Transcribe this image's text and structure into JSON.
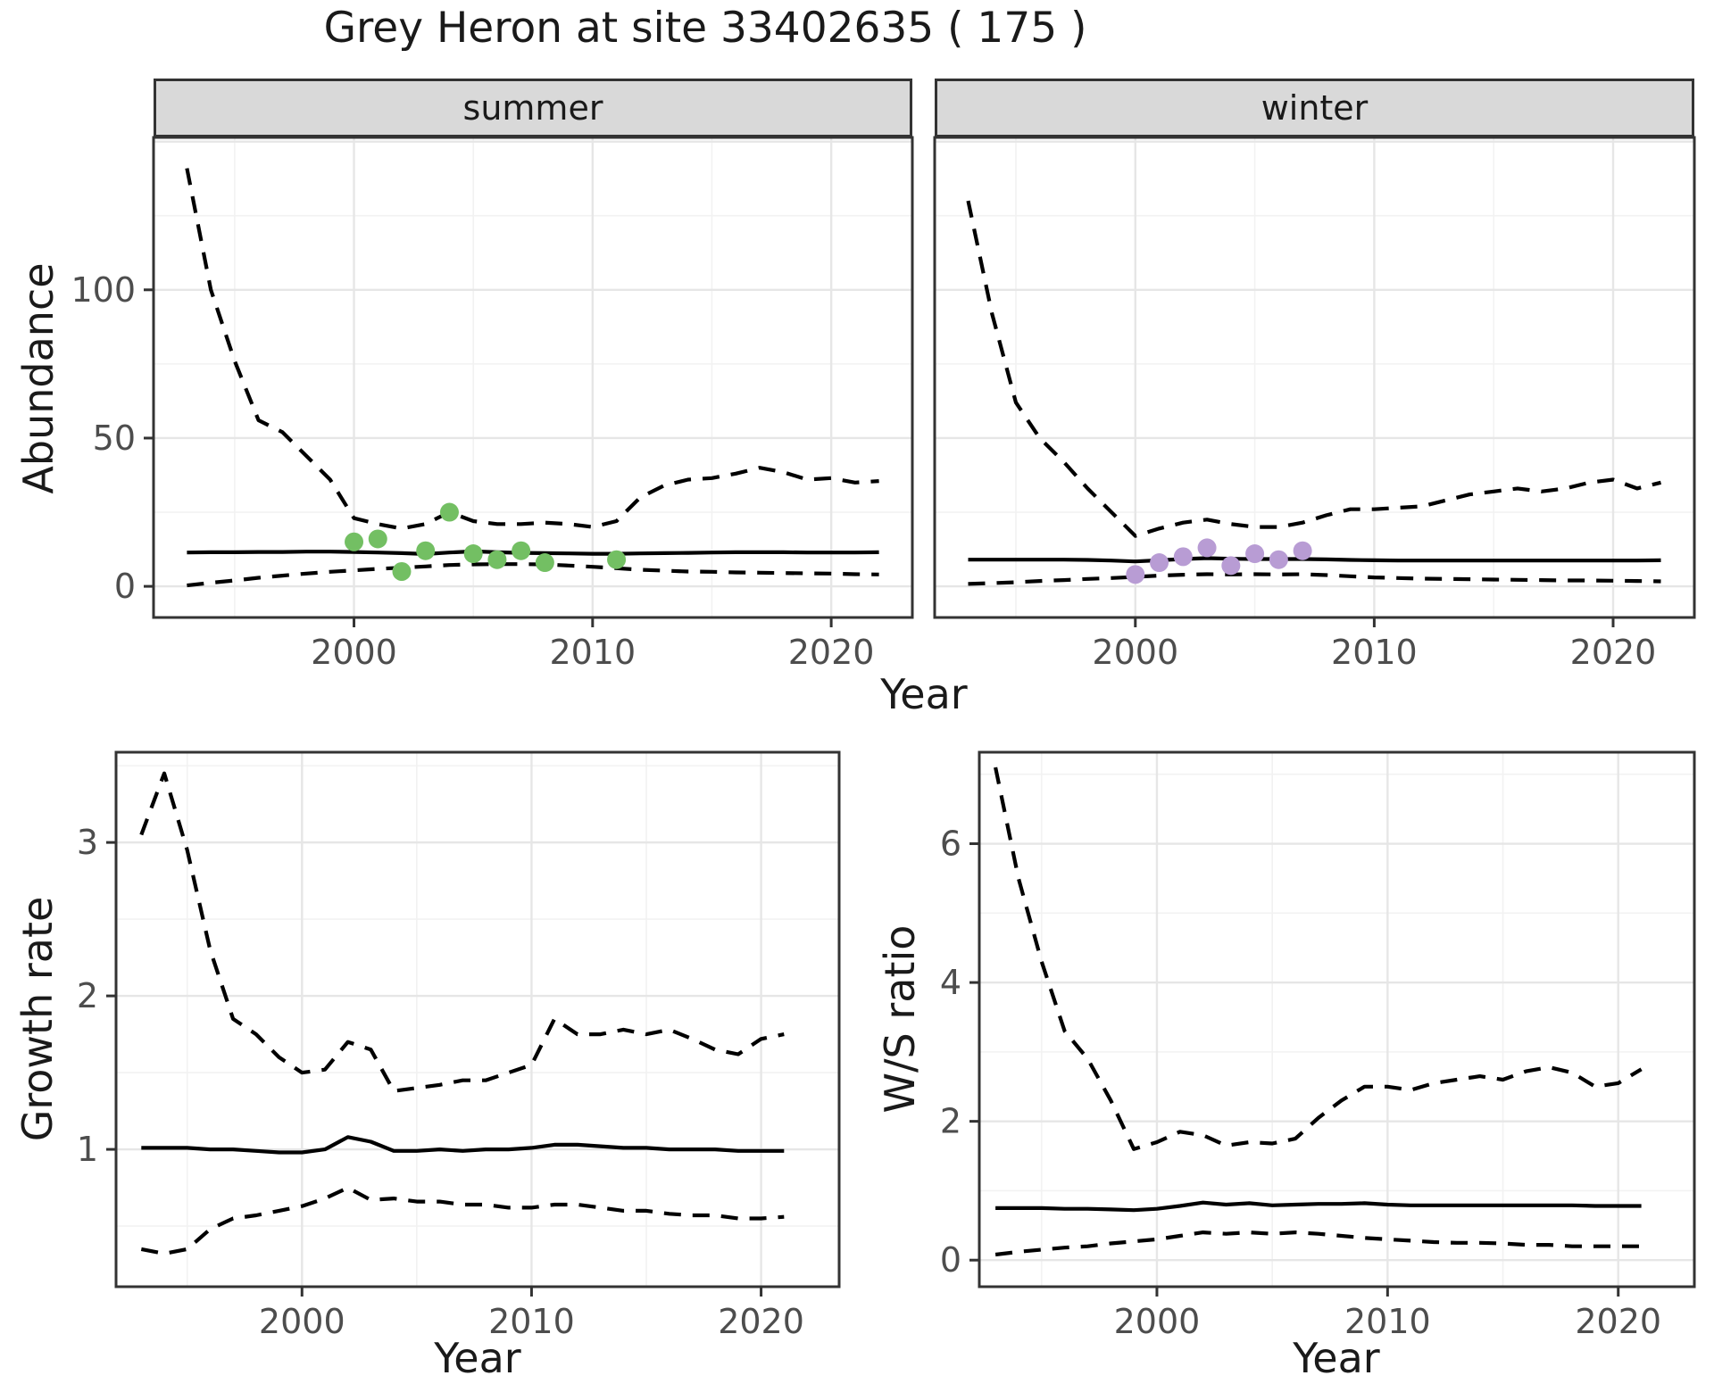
{
  "title": "Grey Heron at site 33402635 ( 175 )",
  "colors": {
    "summer_point": "#73bf63",
    "winter_point": "#b89cd4",
    "line": "#000000",
    "strip_bg": "#d9d9d9",
    "grid_major": "#e6e6e6",
    "grid_minor": "#f2f2f2",
    "panel_border": "#333333",
    "tick_text": "#4d4d4d",
    "text": "#1a1a1a"
  },
  "chart_data": [
    {
      "id": "abundance-summer",
      "type": "line",
      "facet_label": "summer",
      "xlabel": "Year",
      "ylabel": "Abundance",
      "xlim": [
        1991.6,
        2023.4
      ],
      "ylim": [
        -10.5,
        151.4
      ],
      "x_ticks": [
        2000,
        2010,
        2020
      ],
      "x_tick_labels": [
        "2000",
        "2010",
        "2020"
      ],
      "x_minor": [
        1995,
        2005,
        2015
      ],
      "y_ticks": [
        0,
        50,
        100
      ],
      "y_tick_labels": [
        "0",
        "50",
        "100"
      ],
      "y_major_grid": [
        0,
        50,
        100,
        150
      ],
      "y_minor": [
        25,
        75,
        125
      ],
      "grid": true,
      "legend": "none",
      "series": [
        {
          "name": "upper-credible-interval",
          "style": "dashed",
          "x": [
            1993,
            1994,
            1995,
            1996,
            1997,
            1998,
            1999,
            2000,
            2001,
            2002,
            2003,
            2004,
            2005,
            2006,
            2007,
            2008,
            2009,
            2010,
            2011,
            2012,
            2013,
            2014,
            2015,
            2016,
            2017,
            2018,
            2019,
            2020,
            2021,
            2022
          ],
          "y": [
            141,
            100,
            76,
            56,
            52,
            44,
            36,
            23,
            21,
            19.5,
            21,
            25,
            22,
            21,
            21,
            21.5,
            21,
            20,
            22,
            30,
            34,
            36,
            36.5,
            38,
            40,
            38.5,
            36,
            36.5,
            35,
            35.5
          ]
        },
        {
          "name": "lower-credible-interval",
          "style": "dashed",
          "x": [
            1993,
            1994,
            1995,
            1996,
            1997,
            1998,
            1999,
            2000,
            2001,
            2002,
            2003,
            2004,
            2005,
            2006,
            2007,
            2008,
            2009,
            2010,
            2011,
            2012,
            2013,
            2014,
            2015,
            2016,
            2017,
            2018,
            2019,
            2020,
            2021,
            2022
          ],
          "y": [
            0.3,
            1.2,
            2.0,
            2.9,
            3.6,
            4.3,
            4.9,
            5.4,
            5.9,
            6.3,
            6.7,
            7.2,
            7.4,
            7.5,
            7.5,
            7.4,
            7.0,
            6.6,
            6.1,
            5.6,
            5.3,
            5.0,
            4.9,
            4.7,
            4.6,
            4.5,
            4.4,
            4.3,
            4.1,
            4.0
          ]
        },
        {
          "name": "median-estimate",
          "style": "solid",
          "x": [
            1993,
            1994,
            1995,
            1996,
            1997,
            1998,
            1999,
            2000,
            2001,
            2002,
            2003,
            2004,
            2005,
            2006,
            2007,
            2008,
            2009,
            2010,
            2011,
            2012,
            2013,
            2014,
            2015,
            2016,
            2017,
            2018,
            2019,
            2020,
            2021,
            2022
          ],
          "y": [
            11.4,
            11.5,
            11.5,
            11.6,
            11.6,
            11.7,
            11.7,
            11.6,
            11.4,
            11.2,
            10.9,
            11.4,
            11.8,
            11.5,
            11.3,
            11.2,
            11.1,
            11.0,
            11.0,
            11.1,
            11.2,
            11.3,
            11.4,
            11.5,
            11.5,
            11.5,
            11.4,
            11.4,
            11.4,
            11.5
          ]
        },
        {
          "name": "observed-counts",
          "style": "points",
          "color_key": "summer_point",
          "x": [
            2000,
            2001,
            2002,
            2003,
            2004,
            2005,
            2006,
            2007,
            2008,
            2011
          ],
          "y": [
            15,
            16,
            5,
            12,
            25,
            11,
            9,
            12,
            8,
            9
          ]
        }
      ]
    },
    {
      "id": "abundance-winter",
      "type": "line",
      "facet_label": "winter",
      "xlabel": "Year",
      "ylabel": null,
      "xlim": [
        1991.6,
        2023.4
      ],
      "ylim": [
        -10.5,
        151.4
      ],
      "x_ticks": [
        2000,
        2010,
        2020
      ],
      "x_tick_labels": [
        "2000",
        "2010",
        "2020"
      ],
      "x_minor": [
        1995,
        2005,
        2015
      ],
      "y_ticks": [],
      "y_tick_labels": [],
      "y_major_grid": [
        0,
        50,
        100,
        150
      ],
      "y_minor": [
        25,
        75,
        125
      ],
      "grid": true,
      "legend": "none",
      "series": [
        {
          "name": "upper-credible-interval",
          "style": "dashed",
          "x": [
            1993,
            1994,
            1995,
            1996,
            1997,
            1998,
            1999,
            2000,
            2001,
            2002,
            2003,
            2004,
            2005,
            2006,
            2007,
            2008,
            2009,
            2010,
            2011,
            2012,
            2013,
            2014,
            2015,
            2016,
            2017,
            2018,
            2019,
            2020,
            2021,
            2022
          ],
          "y": [
            130,
            92,
            62,
            50,
            42,
            33,
            25,
            17,
            19.5,
            21.5,
            22.5,
            21,
            20,
            20,
            21.5,
            24,
            26,
            26,
            26.5,
            27,
            29,
            31,
            32,
            33,
            32,
            33,
            35,
            36,
            33,
            35
          ]
        },
        {
          "name": "lower-credible-interval",
          "style": "dashed",
          "x": [
            1993,
            1994,
            1995,
            1996,
            1997,
            1998,
            1999,
            2000,
            2001,
            2002,
            2003,
            2004,
            2005,
            2006,
            2007,
            2008,
            2009,
            2010,
            2011,
            2012,
            2013,
            2014,
            2015,
            2016,
            2017,
            2018,
            2019,
            2020,
            2021,
            2022
          ],
          "y": [
            0.8,
            1.1,
            1.4,
            1.8,
            2.1,
            2.5,
            2.8,
            3.2,
            3.6,
            3.9,
            4.1,
            4.0,
            4.1,
            4.0,
            4.1,
            3.8,
            3.4,
            3.0,
            2.8,
            2.6,
            2.5,
            2.4,
            2.3,
            2.2,
            2.1,
            2.0,
            2.0,
            1.9,
            1.8,
            1.7
          ]
        },
        {
          "name": "median-estimate",
          "style": "solid",
          "x": [
            1993,
            1994,
            1995,
            1996,
            1997,
            1998,
            1999,
            2000,
            2001,
            2002,
            2003,
            2004,
            2005,
            2006,
            2007,
            2008,
            2009,
            2010,
            2011,
            2012,
            2013,
            2014,
            2015,
            2016,
            2017,
            2018,
            2019,
            2020,
            2021,
            2022
          ],
          "y": [
            9.0,
            9.0,
            9.0,
            9.0,
            9.0,
            8.9,
            8.7,
            8.4,
            8.8,
            9.2,
            9.5,
            9.3,
            9.2,
            9.2,
            9.2,
            9.1,
            8.9,
            8.8,
            8.7,
            8.7,
            8.7,
            8.7,
            8.7,
            8.7,
            8.7,
            8.7,
            8.7,
            8.7,
            8.7,
            8.8
          ]
        },
        {
          "name": "observed-counts",
          "style": "points",
          "color_key": "winter_point",
          "x": [
            2000,
            2001,
            2002,
            2003,
            2004,
            2005,
            2006,
            2007
          ],
          "y": [
            4,
            8,
            10,
            13,
            7,
            11,
            9,
            12
          ]
        }
      ]
    },
    {
      "id": "growth-rate",
      "type": "line",
      "facet_label": null,
      "xlabel": "Year",
      "ylabel": "Growth rate",
      "xlim": [
        1991.9,
        2023.4
      ],
      "ylim": [
        0.105,
        3.588
      ],
      "x_ticks": [
        2000,
        2010,
        2020
      ],
      "x_tick_labels": [
        "2000",
        "2010",
        "2020"
      ],
      "x_minor": [
        1995,
        2005,
        2015
      ],
      "y_ticks": [
        1,
        2,
        3
      ],
      "y_tick_labels": [
        "1",
        "2",
        "3"
      ],
      "y_major_grid": [
        1,
        2,
        3
      ],
      "y_minor": [
        0.5,
        1.5,
        2.5,
        3.5
      ],
      "grid": true,
      "legend": "none",
      "series": [
        {
          "name": "upper-credible-interval",
          "style": "dashed",
          "x": [
            1993,
            1994,
            1995,
            1996,
            1997,
            1998,
            1999,
            2000,
            2001,
            2002,
            2003,
            2004,
            2005,
            2006,
            2007,
            2008,
            2009,
            2010,
            2011,
            2012,
            2013,
            2014,
            2015,
            2016,
            2017,
            2018,
            2019,
            2020,
            2021
          ],
          "y": [
            3.05,
            3.45,
            2.95,
            2.3,
            1.85,
            1.75,
            1.6,
            1.5,
            1.52,
            1.7,
            1.65,
            1.38,
            1.4,
            1.42,
            1.45,
            1.45,
            1.5,
            1.55,
            1.85,
            1.75,
            1.75,
            1.78,
            1.75,
            1.78,
            1.72,
            1.65,
            1.62,
            1.72,
            1.75
          ]
        },
        {
          "name": "lower-credible-interval",
          "style": "dashed",
          "x": [
            1993,
            1994,
            1995,
            1996,
            1997,
            1998,
            1999,
            2000,
            2001,
            2002,
            2003,
            2004,
            2005,
            2006,
            2007,
            2008,
            2009,
            2010,
            2011,
            2012,
            2013,
            2014,
            2015,
            2016,
            2017,
            2018,
            2019,
            2020,
            2021
          ],
          "y": [
            0.35,
            0.32,
            0.35,
            0.48,
            0.55,
            0.57,
            0.6,
            0.63,
            0.68,
            0.75,
            0.67,
            0.68,
            0.66,
            0.66,
            0.64,
            0.64,
            0.62,
            0.62,
            0.64,
            0.64,
            0.62,
            0.6,
            0.6,
            0.58,
            0.57,
            0.57,
            0.55,
            0.55,
            0.56
          ]
        },
        {
          "name": "median-estimate",
          "style": "solid",
          "x": [
            1993,
            1994,
            1995,
            1996,
            1997,
            1998,
            1999,
            2000,
            2001,
            2002,
            2003,
            2004,
            2005,
            2006,
            2007,
            2008,
            2009,
            2010,
            2011,
            2012,
            2013,
            2014,
            2015,
            2016,
            2017,
            2018,
            2019,
            2020,
            2021
          ],
          "y": [
            1.01,
            1.01,
            1.01,
            1.0,
            1.0,
            0.99,
            0.98,
            0.98,
            1.0,
            1.08,
            1.05,
            0.99,
            0.99,
            1.0,
            0.99,
            1.0,
            1.0,
            1.01,
            1.03,
            1.03,
            1.02,
            1.01,
            1.01,
            1.0,
            1.0,
            1.0,
            0.99,
            0.99,
            0.99
          ]
        }
      ]
    },
    {
      "id": "ws-ratio",
      "type": "line",
      "facet_label": null,
      "xlabel": "Year",
      "ylabel": "W/S ratio",
      "xlim": [
        1992.3,
        2023.3
      ],
      "ylim": [
        -0.383,
        7.318
      ],
      "x_ticks": [
        2000,
        2010,
        2020
      ],
      "x_tick_labels": [
        "2000",
        "2010",
        "2020"
      ],
      "x_minor": [
        1995,
        2005,
        2015
      ],
      "y_ticks": [
        0,
        2,
        4,
        6
      ],
      "y_tick_labels": [
        "0",
        "2",
        "4",
        "6"
      ],
      "y_major_grid": [
        0,
        2,
        4,
        6
      ],
      "y_minor": [
        1,
        3,
        5,
        7
      ],
      "grid": true,
      "legend": "none",
      "series": [
        {
          "name": "upper-credible-interval",
          "style": "dashed",
          "x": [
            1993,
            1994,
            1995,
            1996,
            1997,
            1998,
            1999,
            2000,
            2001,
            2002,
            2003,
            2004,
            2005,
            2006,
            2007,
            2008,
            2009,
            2010,
            2011,
            2012,
            2013,
            2014,
            2015,
            2016,
            2017,
            2018,
            2019,
            2020,
            2021
          ],
          "y": [
            7.1,
            5.5,
            4.3,
            3.3,
            2.9,
            2.3,
            1.6,
            1.7,
            1.85,
            1.8,
            1.65,
            1.7,
            1.68,
            1.75,
            2.05,
            2.3,
            2.5,
            2.5,
            2.45,
            2.55,
            2.6,
            2.65,
            2.6,
            2.72,
            2.78,
            2.7,
            2.5,
            2.55,
            2.75
          ]
        },
        {
          "name": "lower-credible-interval",
          "style": "dashed",
          "x": [
            1993,
            1994,
            1995,
            1996,
            1997,
            1998,
            1999,
            2000,
            2001,
            2002,
            2003,
            2004,
            2005,
            2006,
            2007,
            2008,
            2009,
            2010,
            2011,
            2012,
            2013,
            2014,
            2015,
            2016,
            2017,
            2018,
            2019,
            2020,
            2021
          ],
          "y": [
            0.08,
            0.12,
            0.15,
            0.18,
            0.2,
            0.24,
            0.27,
            0.3,
            0.35,
            0.4,
            0.38,
            0.4,
            0.38,
            0.4,
            0.38,
            0.35,
            0.32,
            0.3,
            0.28,
            0.26,
            0.25,
            0.25,
            0.24,
            0.22,
            0.22,
            0.2,
            0.2,
            0.2,
            0.2
          ]
        },
        {
          "name": "median-estimate",
          "style": "solid",
          "x": [
            1993,
            1994,
            1995,
            1996,
            1997,
            1998,
            1999,
            2000,
            2001,
            2002,
            2003,
            2004,
            2005,
            2006,
            2007,
            2008,
            2009,
            2010,
            2011,
            2012,
            2013,
            2014,
            2015,
            2016,
            2017,
            2018,
            2019,
            2020,
            2021
          ],
          "y": [
            0.75,
            0.75,
            0.75,
            0.74,
            0.74,
            0.73,
            0.72,
            0.74,
            0.78,
            0.83,
            0.8,
            0.82,
            0.79,
            0.8,
            0.81,
            0.81,
            0.82,
            0.8,
            0.79,
            0.79,
            0.79,
            0.79,
            0.79,
            0.79,
            0.79,
            0.79,
            0.78,
            0.78,
            0.78
          ]
        }
      ]
    }
  ]
}
